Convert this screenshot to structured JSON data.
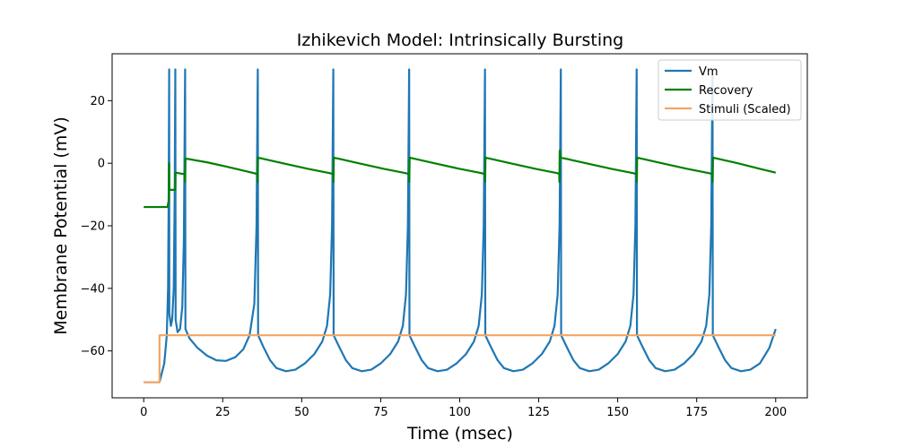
{
  "chart_data": {
    "type": "line",
    "title": "Izhikevich Model: Intrinsically Bursting",
    "xlabel": "Time (msec)",
    "ylabel": "Membrane Potential (mV)",
    "xlim": [
      -10,
      210
    ],
    "ylim": [
      -75,
      35
    ],
    "xticks": [
      0,
      25,
      50,
      75,
      100,
      125,
      150,
      175,
      200
    ],
    "yticks": [
      -60,
      -40,
      -20,
      0,
      20
    ],
    "xtick_labels": [
      "0",
      "25",
      "50",
      "75",
      "100",
      "125",
      "150",
      "175",
      "200"
    ],
    "ytick_labels": [
      "−60",
      "−40",
      "−20",
      "0",
      "20"
    ],
    "grid": false,
    "legend_position": "top-right",
    "series": [
      {
        "name": "Vm",
        "color": "#1f77b4",
        "points": [
          [
            0,
            -70
          ],
          [
            5,
            -70
          ],
          [
            5.5,
            -68
          ],
          [
            6.5,
            -64
          ],
          [
            7.3,
            -55
          ],
          [
            7.7,
            -40
          ],
          [
            7.9,
            -10
          ],
          [
            8.05,
            30
          ],
          [
            8.1,
            -48
          ],
          [
            8.6,
            -52
          ],
          [
            9,
            -50
          ],
          [
            9.5,
            -40
          ],
          [
            9.8,
            -10
          ],
          [
            10,
            30
          ],
          [
            10.1,
            -50
          ],
          [
            10.7,
            -54
          ],
          [
            11.5,
            -53
          ],
          [
            12.2,
            -46
          ],
          [
            12.7,
            -25
          ],
          [
            13.1,
            30
          ],
          [
            13.2,
            -53
          ],
          [
            14.5,
            -56
          ],
          [
            17,
            -59
          ],
          [
            20,
            -61.5
          ],
          [
            23,
            -63
          ],
          [
            26,
            -63.2
          ],
          [
            29,
            -62
          ],
          [
            31.5,
            -59.5
          ],
          [
            33.5,
            -55
          ],
          [
            35,
            -45
          ],
          [
            35.7,
            -20
          ],
          [
            36.1,
            30
          ],
          [
            36.2,
            -55
          ],
          [
            38,
            -59
          ],
          [
            40,
            -63
          ],
          [
            42,
            -65.5
          ],
          [
            45,
            -66.5
          ],
          [
            48,
            -66
          ],
          [
            51,
            -64
          ],
          [
            54,
            -61
          ],
          [
            56.5,
            -57
          ],
          [
            58,
            -52
          ],
          [
            59,
            -42
          ],
          [
            59.6,
            -20
          ],
          [
            60,
            30
          ],
          [
            60.1,
            -55
          ],
          [
            62,
            -59
          ],
          [
            64,
            -63
          ],
          [
            66,
            -65.5
          ],
          [
            69,
            -66.5
          ],
          [
            72,
            -66
          ],
          [
            75,
            -64
          ],
          [
            78,
            -61
          ],
          [
            80.5,
            -57
          ],
          [
            82,
            -52
          ],
          [
            83,
            -42
          ],
          [
            83.6,
            -20
          ],
          [
            84,
            30
          ],
          [
            84.1,
            -55
          ],
          [
            86,
            -59
          ],
          [
            88,
            -63
          ],
          [
            90,
            -65.5
          ],
          [
            93,
            -66.5
          ],
          [
            96,
            -66
          ],
          [
            99,
            -64
          ],
          [
            102,
            -61
          ],
          [
            104.5,
            -57
          ],
          [
            106,
            -52
          ],
          [
            107,
            -42
          ],
          [
            107.6,
            -20
          ],
          [
            108,
            30
          ],
          [
            108.1,
            -55
          ],
          [
            110,
            -59
          ],
          [
            112,
            -63
          ],
          [
            114,
            -65.5
          ],
          [
            117,
            -66.5
          ],
          [
            120,
            -66
          ],
          [
            123,
            -64
          ],
          [
            126,
            -61
          ],
          [
            128.5,
            -57
          ],
          [
            130,
            -52
          ],
          [
            131,
            -42
          ],
          [
            131.6,
            -20
          ],
          [
            132,
            30
          ],
          [
            132.1,
            -55
          ],
          [
            134,
            -59
          ],
          [
            136,
            -63
          ],
          [
            138,
            -65.5
          ],
          [
            141,
            -66.5
          ],
          [
            144,
            -66
          ],
          [
            147,
            -64
          ],
          [
            150,
            -61
          ],
          [
            152.5,
            -57
          ],
          [
            154,
            -52
          ],
          [
            155,
            -42
          ],
          [
            155.6,
            -20
          ],
          [
            156,
            30
          ],
          [
            156.1,
            -55
          ],
          [
            158,
            -59
          ],
          [
            160,
            -63
          ],
          [
            162,
            -65.5
          ],
          [
            165,
            -66.5
          ],
          [
            168,
            -66
          ],
          [
            171,
            -64
          ],
          [
            174,
            -61
          ],
          [
            176.5,
            -57
          ],
          [
            178,
            -52
          ],
          [
            179,
            -42
          ],
          [
            179.6,
            -20
          ],
          [
            180,
            30
          ],
          [
            180.1,
            -55
          ],
          [
            182,
            -59
          ],
          [
            184,
            -63
          ],
          [
            186,
            -65.5
          ],
          [
            189,
            -66.5
          ],
          [
            192,
            -66
          ],
          [
            195,
            -64
          ],
          [
            198,
            -59
          ],
          [
            200,
            -53
          ]
        ]
      },
      {
        "name": "Recovery",
        "color": "#008000",
        "points": [
          [
            0,
            -14
          ],
          [
            7.5,
            -14
          ],
          [
            7.9,
            -12
          ],
          [
            8.05,
            0
          ],
          [
            8.1,
            -8.5
          ],
          [
            10,
            -8.5
          ],
          [
            10.05,
            -3
          ],
          [
            13,
            -3.5
          ],
          [
            13.1,
            -6
          ],
          [
            13.2,
            1.5
          ],
          [
            20,
            0.3
          ],
          [
            28,
            -1.5
          ],
          [
            35,
            -3.2
          ],
          [
            36,
            -3.5
          ],
          [
            36.05,
            -6
          ],
          [
            36.15,
            1.8
          ],
          [
            44,
            0
          ],
          [
            52,
            -1.8
          ],
          [
            59,
            -3.2
          ],
          [
            60,
            -3.5
          ],
          [
            60.05,
            -6
          ],
          [
            60.15,
            1.8
          ],
          [
            68,
            0
          ],
          [
            76,
            -1.8
          ],
          [
            83,
            -3.2
          ],
          [
            84,
            -3.5
          ],
          [
            84.05,
            -6
          ],
          [
            84.15,
            1.8
          ],
          [
            92,
            0
          ],
          [
            100,
            -1.8
          ],
          [
            107,
            -3.2
          ],
          [
            108,
            -3.5
          ],
          [
            108.05,
            -6
          ],
          [
            108.15,
            1.8
          ],
          [
            116,
            0
          ],
          [
            124,
            -1.8
          ],
          [
            131,
            -3.2
          ],
          [
            131.5,
            -3.5
          ],
          [
            131.55,
            -6
          ],
          [
            131.65,
            4
          ],
          [
            132,
            1.8
          ],
          [
            140,
            0
          ],
          [
            148,
            -1.8
          ],
          [
            155,
            -3.2
          ],
          [
            156,
            -3.5
          ],
          [
            156.05,
            -6
          ],
          [
            156.15,
            1.8
          ],
          [
            164,
            0
          ],
          [
            172,
            -1.8
          ],
          [
            179,
            -3.2
          ],
          [
            180,
            -3.5
          ],
          [
            180.05,
            -6
          ],
          [
            180.15,
            1.8
          ],
          [
            188,
            0
          ],
          [
            195,
            -1.8
          ],
          [
            200,
            -3
          ]
        ]
      },
      {
        "name": "Stimuli (Scaled)",
        "color": "#f4a460",
        "points": [
          [
            0,
            -70
          ],
          [
            5,
            -70
          ],
          [
            5,
            -55
          ],
          [
            200,
            -55
          ]
        ]
      }
    ]
  }
}
